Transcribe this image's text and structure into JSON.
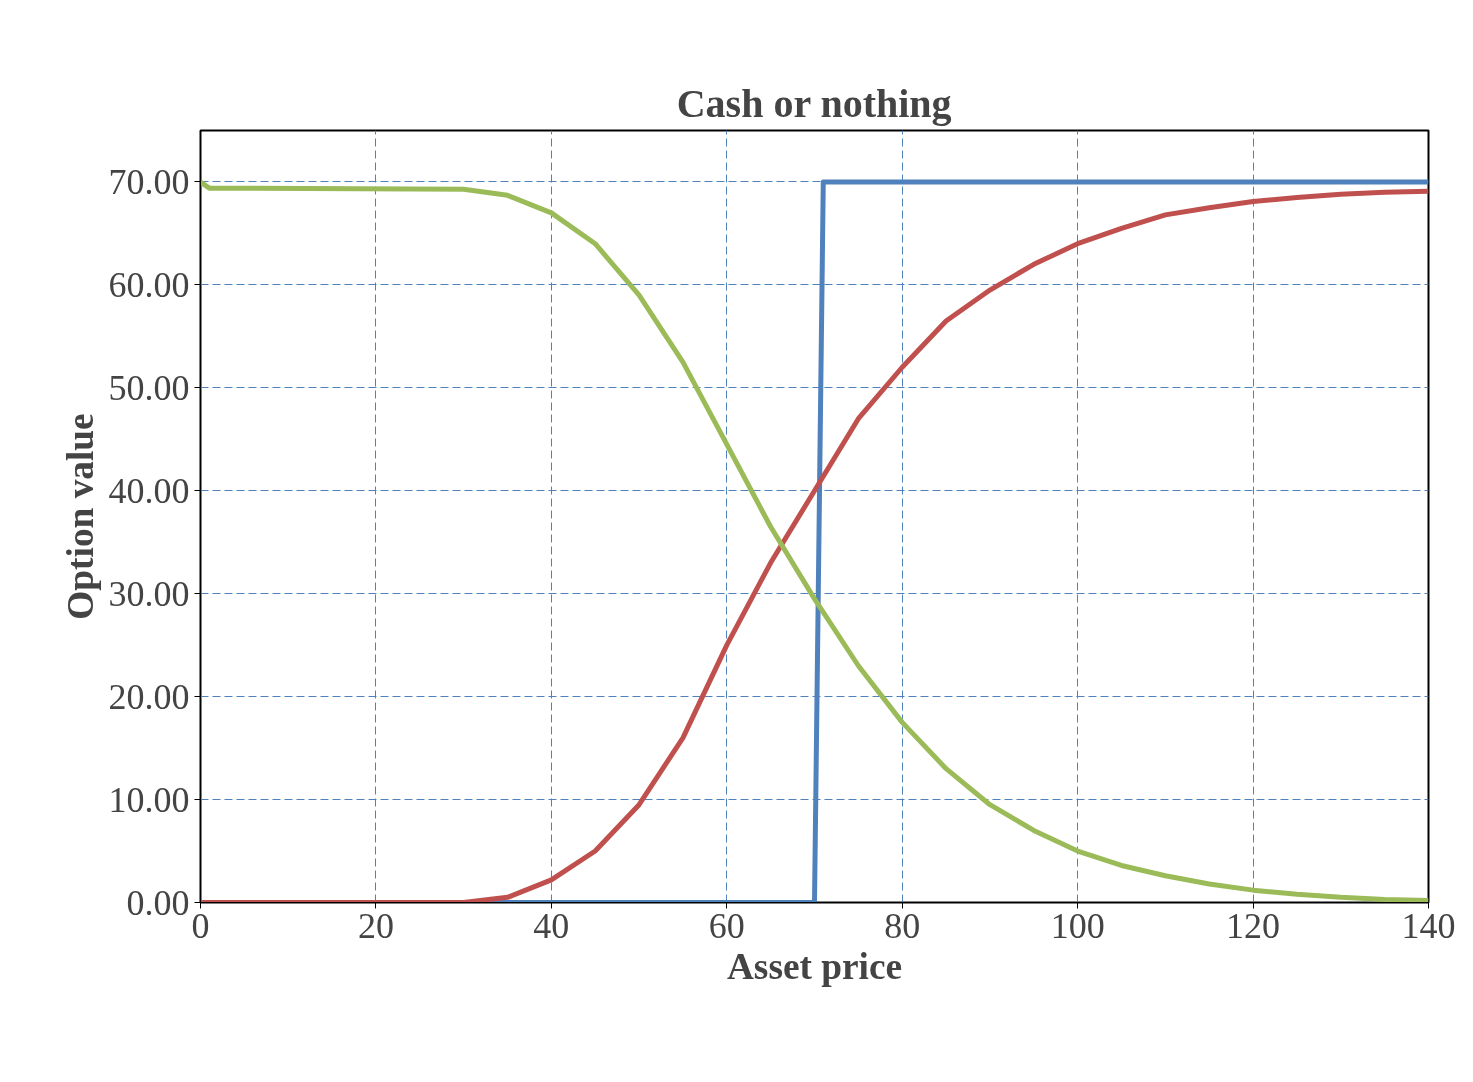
{
  "chart_data": {
    "type": "line",
    "title": "Cash or nothing",
    "xlabel": "Asset price",
    "ylabel": "Option value",
    "xlim": [
      0,
      140
    ],
    "xticks": [
      0,
      20,
      40,
      60,
      80,
      100,
      120,
      140
    ],
    "ylim": [
      0,
      75
    ],
    "yticks": [
      {
        "value": 0,
        "label": "0.00"
      },
      {
        "value": 10,
        "label": "10.00"
      },
      {
        "value": 20,
        "label": "20.00"
      },
      {
        "value": 30,
        "label": "30.00"
      },
      {
        "value": 40,
        "label": "40.00"
      },
      {
        "value": 50,
        "label": "50.00"
      },
      {
        "value": 60,
        "label": "60.00"
      },
      {
        "value": 70,
        "label": "70.00"
      }
    ],
    "grid": true,
    "line_style": "solid",
    "marker": "none",
    "series": [
      {
        "color": "#4f81bd",
        "x": [
          0,
          70,
          71,
          140
        ],
        "values": [
          0,
          0,
          70,
          70
        ]
      },
      {
        "color": "#c0504d",
        "x": [
          0,
          30,
          35,
          40,
          45,
          50,
          55,
          60,
          65,
          70,
          75,
          80,
          85,
          90,
          95,
          100,
          105,
          110,
          115,
          120,
          125,
          130,
          135,
          140
        ],
        "values": [
          0,
          0,
          0.5,
          2.2,
          5,
          9.5,
          16,
          25,
          33,
          40,
          47,
          52,
          56.5,
          59.5,
          62,
          64,
          65.5,
          66.8,
          67.5,
          68.1,
          68.5,
          68.8,
          69,
          69.1
        ]
      },
      {
        "color": "#9bbb59",
        "x": [
          0,
          1,
          30,
          35,
          40,
          45,
          50,
          55,
          60,
          65,
          70,
          75,
          80,
          85,
          90,
          95,
          100,
          105,
          110,
          115,
          120,
          125,
          130,
          135,
          140
        ],
        "values": [
          70,
          69.4,
          69.3,
          68.7,
          67,
          64,
          59,
          52.5,
          44.5,
          36.5,
          29.5,
          23,
          17.5,
          13,
          9.5,
          7,
          5,
          3.6,
          2.6,
          1.8,
          1.2,
          0.8,
          0.5,
          0.3,
          0.2
        ]
      }
    ]
  }
}
